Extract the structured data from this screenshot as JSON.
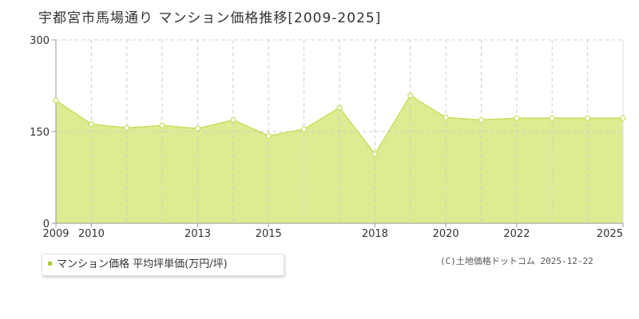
{
  "title": "宇都宮市馬場通り マンション価格推移[2009-2025]",
  "legend": {
    "label": "マンション価格 平均坪単価(万円/坪)",
    "color": "#a9d12f"
  },
  "credit": "(C)土地価格ドットコム 2025-12-22",
  "colors": {
    "fill": "#ddec92",
    "line": "#c2e05a",
    "grid": "#cccccc",
    "axis": "#999999"
  },
  "chart_data": {
    "type": "area",
    "title": "宇都宮市馬場通り マンション価格推移[2009-2025]",
    "xlabel": "",
    "ylabel": "",
    "xlim": [
      2009,
      2025
    ],
    "ylim": [
      0,
      300
    ],
    "x_ticks": [
      2009,
      2010,
      2013,
      2015,
      2018,
      2020,
      2022,
      2025
    ],
    "y_ticks": [
      0,
      150,
      300
    ],
    "grid": true,
    "legend_position": "bottom-left",
    "series": [
      {
        "name": "マンション価格 平均坪単価(万円/坪)",
        "x": [
          2009,
          2010,
          2011,
          2012,
          2013,
          2014,
          2015,
          2016,
          2017,
          2018,
          2019,
          2020,
          2021,
          2022,
          2023,
          2024,
          2025
        ],
        "y": [
          201,
          162,
          156,
          160,
          155,
          169,
          143,
          154,
          189,
          113,
          209,
          173,
          169,
          172,
          172,
          172,
          172
        ]
      }
    ]
  }
}
